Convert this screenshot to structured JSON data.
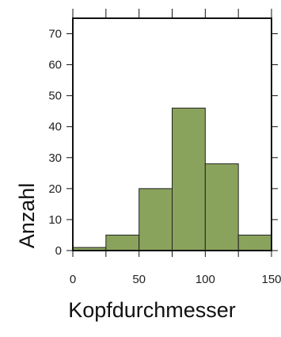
{
  "chart_data": {
    "type": "bar",
    "histogram": true,
    "bins": [
      {
        "x0": 0,
        "x1": 25,
        "count": 1
      },
      {
        "x0": 25,
        "x1": 50,
        "count": 5
      },
      {
        "x0": 50,
        "x1": 75,
        "count": 20
      },
      {
        "x0": 75,
        "x1": 100,
        "count": 46
      },
      {
        "x0": 100,
        "x1": 125,
        "count": 28
      },
      {
        "x0": 125,
        "x1": 150,
        "count": 5
      }
    ],
    "xlabel": "Kopfdurchmesser",
    "ylabel": "Anzahl",
    "xlim": [
      0,
      150
    ],
    "ylim": [
      0,
      75
    ],
    "xticks": [
      0,
      50,
      100,
      150
    ],
    "yticks": [
      0,
      10,
      20,
      30,
      40,
      50,
      60,
      70
    ],
    "grid": false,
    "bar_color": "#8aa35c",
    "edge_color": "#222222"
  }
}
